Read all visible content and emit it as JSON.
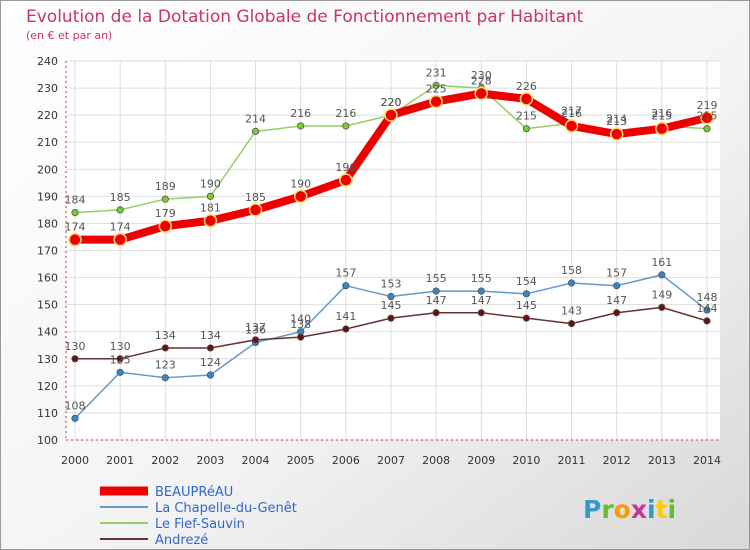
{
  "chart_data": {
    "type": "line",
    "title": "Evolution de la Dotation Globale de Fonctionnement par Habitant",
    "subtitle": "(en € et par an)",
    "xlabel": "",
    "ylabel": "",
    "categories": [
      "2000",
      "2001",
      "2002",
      "2003",
      "2004",
      "2005",
      "2006",
      "2007",
      "2008",
      "2009",
      "2010",
      "2011",
      "2012",
      "2013",
      "2014"
    ],
    "ylim": [
      100,
      240
    ],
    "yticks": [
      100,
      110,
      120,
      130,
      140,
      150,
      160,
      170,
      180,
      190,
      200,
      210,
      220,
      230,
      240
    ],
    "grid": true,
    "legend_position": "bottom-left",
    "series": [
      {
        "name": "BEAUPRéAU",
        "color": "#ee0000",
        "values": [
          174,
          174,
          179,
          181,
          185,
          190,
          196,
          220,
          225,
          228,
          226,
          216,
          213,
          215,
          219
        ]
      },
      {
        "name": "La Chapelle-du-Genêt",
        "color": "#6699cc",
        "values": [
          108,
          125,
          123,
          124,
          136,
          140,
          157,
          153,
          155,
          155,
          154,
          158,
          157,
          161,
          148
        ]
      },
      {
        "name": "Le Fief-Sauvin",
        "color": "#99cc66",
        "values": [
          184,
          185,
          189,
          190,
          214,
          216,
          216,
          220,
          231,
          230,
          215,
          217,
          214,
          216,
          215
        ]
      },
      {
        "name": "Andrezé",
        "color": "#663333",
        "values": [
          130,
          130,
          134,
          134,
          137,
          138,
          141,
          145,
          147,
          147,
          145,
          143,
          147,
          149,
          144
        ]
      }
    ]
  },
  "brand": {
    "logo_text": "Proxiti"
  }
}
